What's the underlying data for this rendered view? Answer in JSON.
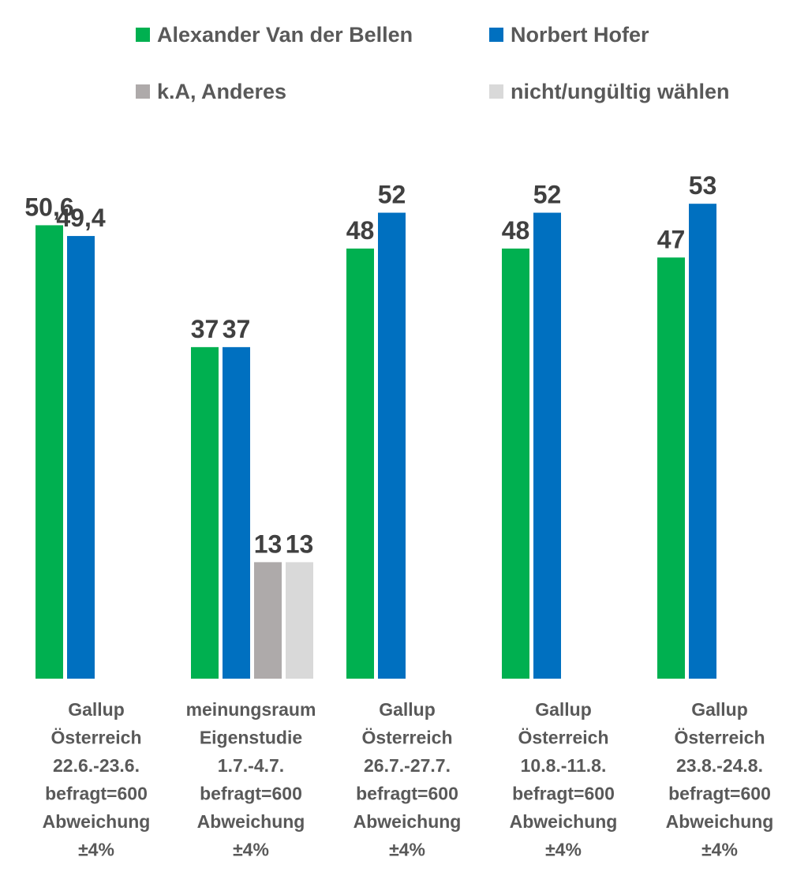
{
  "chart_data": {
    "type": "bar",
    "title": "",
    "xlabel": "",
    "ylabel": "",
    "ylim": [
      0,
      60
    ],
    "grid": false,
    "legend_position": "top",
    "series": [
      {
        "name": "Alexander Van der Bellen",
        "color": "#00B050",
        "values": [
          50.6,
          37,
          48,
          48,
          47
        ],
        "labels": [
          "50,6",
          "37",
          "48",
          "48",
          "47"
        ]
      },
      {
        "name": "Norbert Hofer",
        "color": "#0070C0",
        "values": [
          49.4,
          37,
          52,
          52,
          53
        ],
        "labels": [
          "49,4",
          "37",
          "52",
          "52",
          "53"
        ]
      },
      {
        "name": "k.A, Anderes",
        "color": "#AEAAAA",
        "values": [
          null,
          13,
          null,
          null,
          null
        ],
        "labels": [
          "",
          "13",
          "",
          "",
          ""
        ]
      },
      {
        "name": "nicht/ungültig wählen",
        "color": "#D9D9D9",
        "values": [
          null,
          13,
          null,
          null,
          null
        ],
        "labels": [
          "",
          "13",
          "",
          "",
          ""
        ]
      }
    ],
    "categories": [
      [
        "Gallup",
        "Österreich",
        "22.6.-23.6.",
        "befragt=600",
        "Abweichung",
        "±4%"
      ],
      [
        "meinungsraum",
        "Eigenstudie",
        "1.7.-4.7.",
        "befragt=600",
        "Abweichung",
        "±4%"
      ],
      [
        "Gallup",
        "Österreich",
        "26.7.-27.7.",
        "befragt=600",
        "Abweichung",
        "±4%"
      ],
      [
        "Gallup",
        "Österreich",
        "10.8.-11.8.",
        "befragt=600",
        "Abweichung",
        "±4%"
      ],
      [
        "Gallup",
        "Österreich",
        "23.8.-24.8.",
        "befragt=600",
        "Abweichung",
        "±4%"
      ]
    ]
  }
}
